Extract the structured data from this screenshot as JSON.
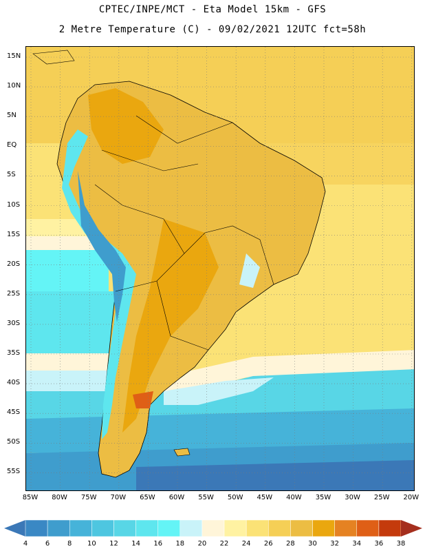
{
  "title_line1": "CPTEC/INPE/MCT -  Eta Model 15km - GFS",
  "title_line2": "2 Metre Temperature (C) - 09/02/2021 12UTC fct=58h",
  "lat_labels": [
    "15N",
    "10N",
    "5N",
    "EQ",
    "5S",
    "10S",
    "15S",
    "20S",
    "25S",
    "30S",
    "35S",
    "40S",
    "45S",
    "50S",
    "55S"
  ],
  "lon_labels": [
    "85W",
    "80W",
    "75W",
    "70W",
    "65W",
    "60W",
    "55W",
    "50W",
    "45W",
    "40W",
    "35W",
    "30W",
    "25W",
    "20W"
  ],
  "colorbar": {
    "labels": [
      "4",
      "6",
      "8",
      "10",
      "12",
      "14",
      "16",
      "18",
      "20",
      "22",
      "24",
      "26",
      "28",
      "30",
      "32",
      "34",
      "36",
      "38"
    ],
    "colors": [
      "#3b78b7",
      "#3a88c4",
      "#3f9dcd",
      "#46b3d9",
      "#4ec6e0",
      "#58d6e6",
      "#5ee6ee",
      "#64f4f6",
      "#c9f3f9",
      "#fff5d9",
      "#fff2a2",
      "#fbe276",
      "#f5cf56",
      "#ecbd43",
      "#eaa70f",
      "#e58222",
      "#df5f16",
      "#c43a0c",
      "#a52f1e"
    ]
  },
  "icons": {
    "left_arrow": "triangle-left-icon",
    "right_arrow": "triangle-right-icon"
  }
}
